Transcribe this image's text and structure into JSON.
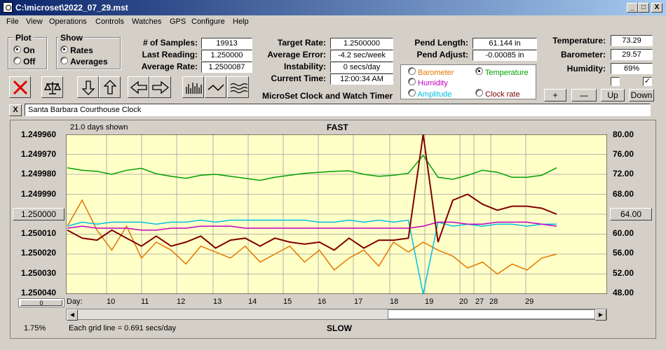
{
  "window": {
    "title": "C:\\microset\\2022_07_29.mst",
    "min": "_",
    "max": "□",
    "close": "X"
  },
  "menu": [
    "File",
    "View",
    "Operations",
    "Controls",
    "Watches",
    "GPS",
    "Configure",
    "Help"
  ],
  "plot_group": {
    "title": "Plot",
    "on": "On",
    "off": "Off",
    "selected": "On"
  },
  "show_group": {
    "title": "Show",
    "rates": "Rates",
    "averages": "Averages",
    "selected": "Rates"
  },
  "stats1": [
    {
      "label": "# of Samples:",
      "value": "19913"
    },
    {
      "label": "Last Reading:",
      "value": "1.250000"
    },
    {
      "label": "Average Rate:",
      "value": "1.2500087"
    }
  ],
  "stats2": [
    {
      "label": "Target Rate:",
      "value": "1.2500000"
    },
    {
      "label": "Average Error:",
      "value": "-4.2 sec/week"
    },
    {
      "label": "Instability:",
      "value": "0 secs/day"
    },
    {
      "label": "Current Time:",
      "value": "12:00:34 AM"
    }
  ],
  "app_caption": "MicroSet Clock and Watch Timer",
  "pend": [
    {
      "label": "Pend Length:",
      "value": "61.144 in"
    },
    {
      "label": "Pend Adjust:",
      "value": "-0.00085 in"
    }
  ],
  "env": [
    {
      "label": "Temperature:",
      "value": "73.29"
    },
    {
      "label": "Barometer:",
      "value": "29.57"
    },
    {
      "label": "Humidity:",
      "value": "69%"
    }
  ],
  "series_select": {
    "barometer": {
      "label": "Barometer",
      "color": "#e07800"
    },
    "temperature": {
      "label": "Temperature",
      "color": "#00a000"
    },
    "humidity": {
      "label": "Humidity",
      "color": "#c000c0"
    },
    "amplitude": {
      "label": "Amplitude",
      "color": "#00c0e0"
    },
    "clock_rate": {
      "label": "Clock rate",
      "color": "#800000"
    },
    "selected": "Temperature"
  },
  "checks": {
    "left": false,
    "right": true,
    "mark": "✓"
  },
  "scale_buttons": {
    "plus": "+",
    "minus": "—",
    "up": "Up",
    "down": "Down"
  },
  "watch_name": "Santa Barbara Courthouse Clock",
  "clear_button": "X",
  "plot": {
    "days_shown": "21.0 days shown",
    "top_label": "FAST",
    "bottom_label": "SLOW",
    "grid_note": "Each grid line = 0.691 secs/day",
    "left_axis": [
      "1.249960",
      "1.249970",
      "1.249980",
      "1.249990",
      "1.250000",
      "1.250010",
      "1.250020",
      "1.250030",
      "1.250040"
    ],
    "right_axis": [
      "80.00",
      "76.00",
      "72.00",
      "68.00",
      "64.00",
      "60.00",
      "56.00",
      "52.00",
      "48.00"
    ],
    "left_center_button": "1.250000",
    "right_center_button": "64.00",
    "day_prefix": "Day:",
    "days": [
      "10",
      "11",
      "12",
      "13",
      "14",
      "15",
      "16",
      "17",
      "18",
      "19",
      "20",
      "27",
      "28",
      "29"
    ],
    "zoom_percent": "1.75%",
    "slider_label": "0"
  },
  "chart_data": {
    "type": "line",
    "x_unit": "day",
    "left_axis_range": [
      1.24996,
      1.25004
    ],
    "right_axis_range": [
      48,
      80
    ],
    "series": [
      {
        "name": "Temperature",
        "axis": "right",
        "color": "#00a000",
        "values": [
          73.3,
          72.8,
          72.6,
          72.0,
          72.8,
          73.2,
          72.1,
          71.6,
          71.2,
          71.8,
          72.0,
          71.6,
          71.2,
          70.8,
          71.4,
          71.8,
          72.2,
          72.4,
          72.6,
          72.7,
          72.0,
          71.6,
          71.8,
          72.2,
          75.8,
          71.4,
          71.0,
          71.8,
          72.8,
          72.4,
          71.4,
          71.4,
          71.8,
          73.3
        ]
      },
      {
        "name": "Barometer",
        "axis": "left",
        "color": "#e07800",
        "values": [
          1.250006,
          1.249993,
          1.250008,
          1.250018,
          1.250006,
          1.250022,
          1.250014,
          1.250018,
          1.250025,
          1.250016,
          1.250019,
          1.250022,
          1.250016,
          1.250024,
          1.25002,
          1.250016,
          1.250024,
          1.250018,
          1.250028,
          1.250022,
          1.250018,
          1.250026,
          1.250014,
          1.250019,
          1.250014,
          1.250018,
          1.250021,
          1.250027,
          1.250024,
          1.25003,
          1.250025,
          1.250028,
          1.250022,
          1.25002
        ]
      },
      {
        "name": "Amplitude",
        "axis": "left",
        "color": "#00c0e0",
        "values": [
          1.250006,
          1.250004,
          1.250005,
          1.250004,
          1.250004,
          1.250004,
          1.250005,
          1.250004,
          1.250004,
          1.250003,
          1.250004,
          1.250003,
          1.250003,
          1.250003,
          1.250003,
          1.250003,
          1.250003,
          1.250004,
          1.250004,
          1.250003,
          1.250004,
          1.250003,
          1.250004,
          1.250003,
          1.25004,
          1.250004,
          1.250006,
          1.250005,
          1.250006,
          1.250005,
          1.250005,
          1.250006,
          1.250005,
          1.250005
        ]
      },
      {
        "name": "Humidity",
        "axis": "left",
        "color": "#c000c0",
        "values": [
          1.250007,
          1.250006,
          1.250007,
          1.250007,
          1.250007,
          1.250008,
          1.250008,
          1.250007,
          1.250007,
          1.250006,
          1.250006,
          1.250006,
          1.250007,
          1.250007,
          1.250007,
          1.250007,
          1.250007,
          1.250007,
          1.250007,
          1.250007,
          1.250007,
          1.250007,
          1.250007,
          1.250007,
          1.250006,
          1.250004,
          1.250004,
          1.250005,
          1.250005,
          1.250004,
          1.250004,
          1.250004,
          1.250005,
          1.250006
        ]
      },
      {
        "name": "Clock rate",
        "axis": "left",
        "color": "#800000",
        "values": [
          1.250008,
          1.250012,
          1.250013,
          1.250008,
          1.250012,
          1.250016,
          1.250011,
          1.250016,
          1.250014,
          1.250011,
          1.250017,
          1.250013,
          1.250012,
          1.250016,
          1.250012,
          1.250014,
          1.250015,
          1.250014,
          1.250018,
          1.250012,
          1.250017,
          1.250013,
          1.250013,
          1.250012,
          1.24996,
          1.250014,
          1.249993,
          1.24999,
          1.249995,
          1.249998,
          1.249996,
          1.249996,
          1.249997,
          1.25
        ]
      }
    ]
  }
}
